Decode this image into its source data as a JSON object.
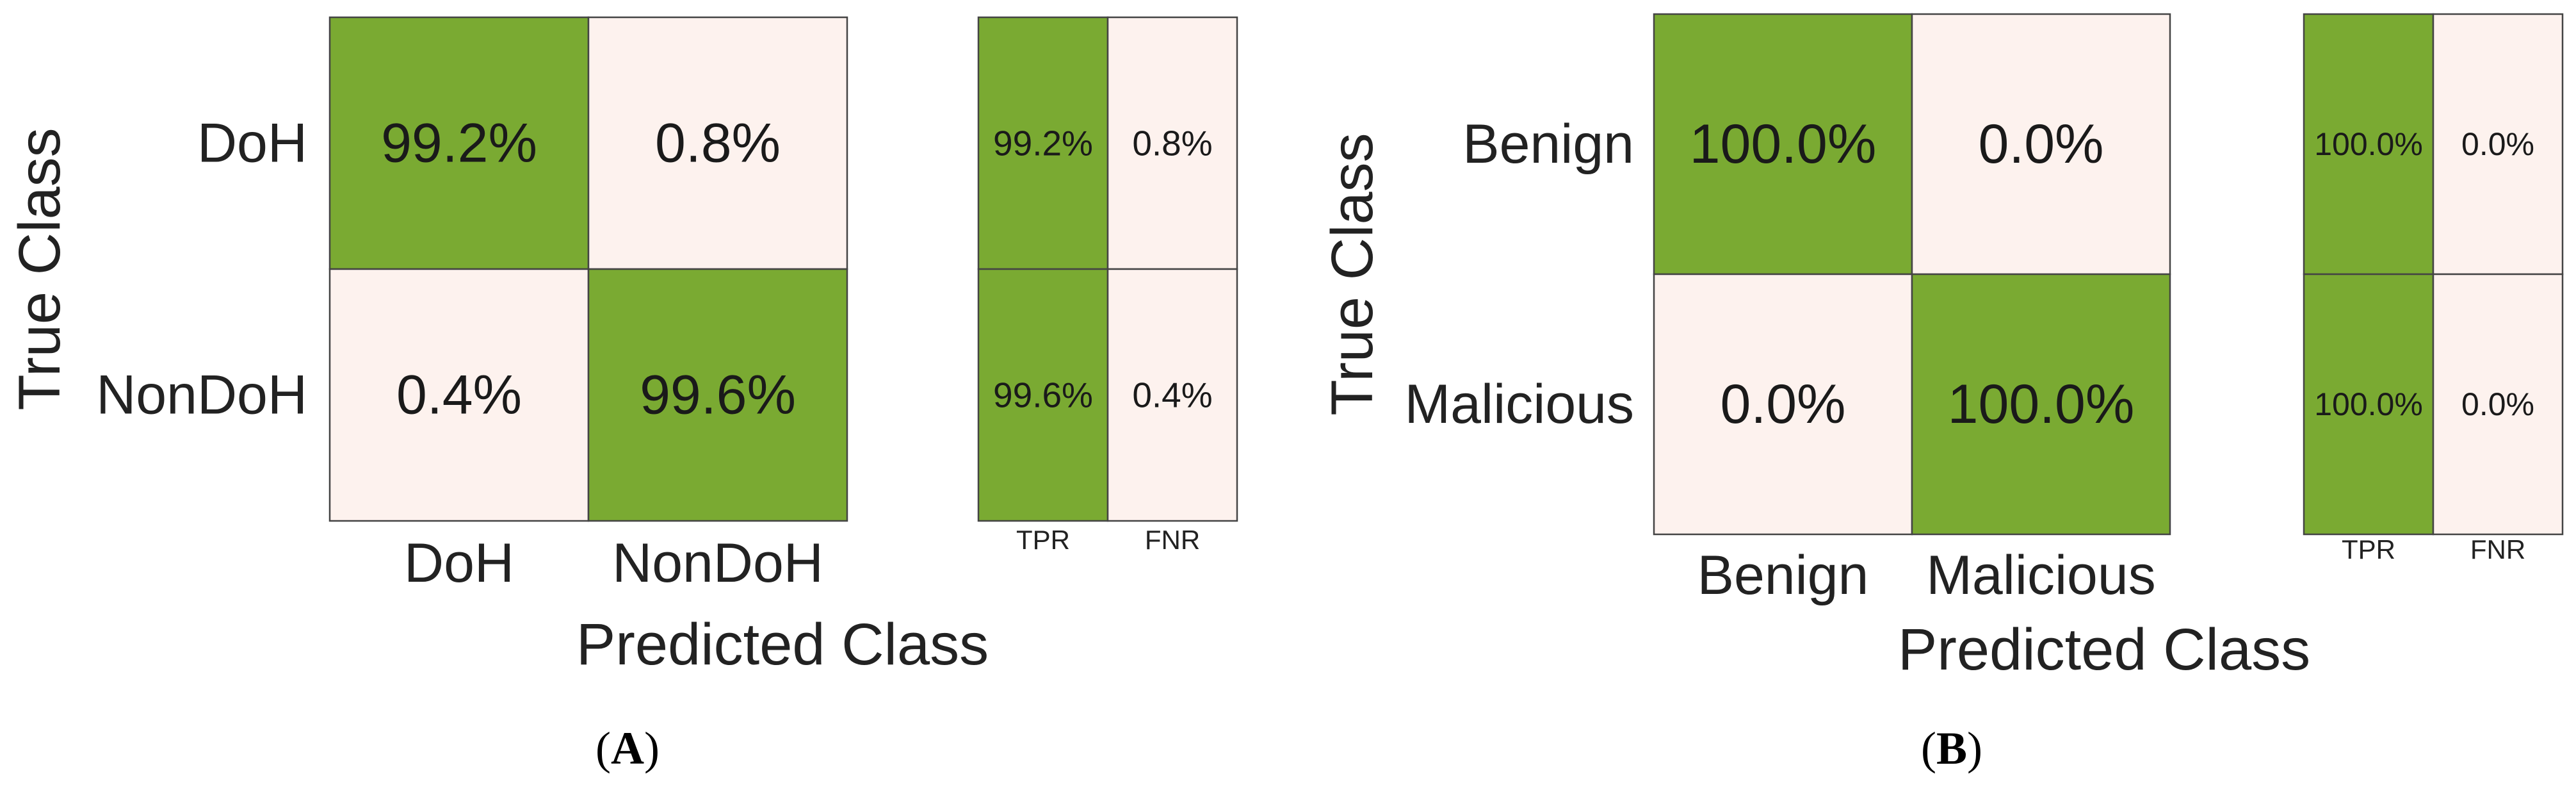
{
  "colors": {
    "high": "#7aaa32",
    "low": "#fdf2ee",
    "border": "#444444",
    "text": "#1a1a1a"
  },
  "chart_data": [
    {
      "type": "heatmap",
      "panel_label": "A",
      "xlabel": "Predicted Class",
      "ylabel": "True Class",
      "classes": [
        "DoH",
        "NonDoH"
      ],
      "matrix": [
        [
          99.2,
          0.8
        ],
        [
          0.4,
          99.6
        ]
      ],
      "matrix_text": [
        [
          "99.2%",
          "0.8%"
        ],
        [
          "0.4%",
          "99.6%"
        ]
      ],
      "summary_headers": [
        "TPR",
        "FNR"
      ],
      "summary": [
        [
          99.2,
          0.8
        ],
        [
          99.6,
          0.4
        ]
      ],
      "summary_text": [
        [
          "99.2%",
          "0.8%"
        ],
        [
          "99.6%",
          "0.4%"
        ]
      ]
    },
    {
      "type": "heatmap",
      "panel_label": "B",
      "xlabel": "Predicted Class",
      "ylabel": "True Class",
      "classes": [
        "Benign",
        "Malicious"
      ],
      "matrix": [
        [
          100.0,
          0.0
        ],
        [
          0.0,
          100.0
        ]
      ],
      "matrix_text": [
        [
          "100.0%",
          "0.0%"
        ],
        [
          "0.0%",
          "100.0%"
        ]
      ],
      "summary_headers": [
        "TPR",
        "FNR"
      ],
      "summary": [
        [
          100.0,
          0.0
        ],
        [
          100.0,
          0.0
        ]
      ],
      "summary_text": [
        [
          "100.0%",
          "0.0%"
        ],
        [
          "100.0%",
          "0.0%"
        ]
      ]
    }
  ]
}
